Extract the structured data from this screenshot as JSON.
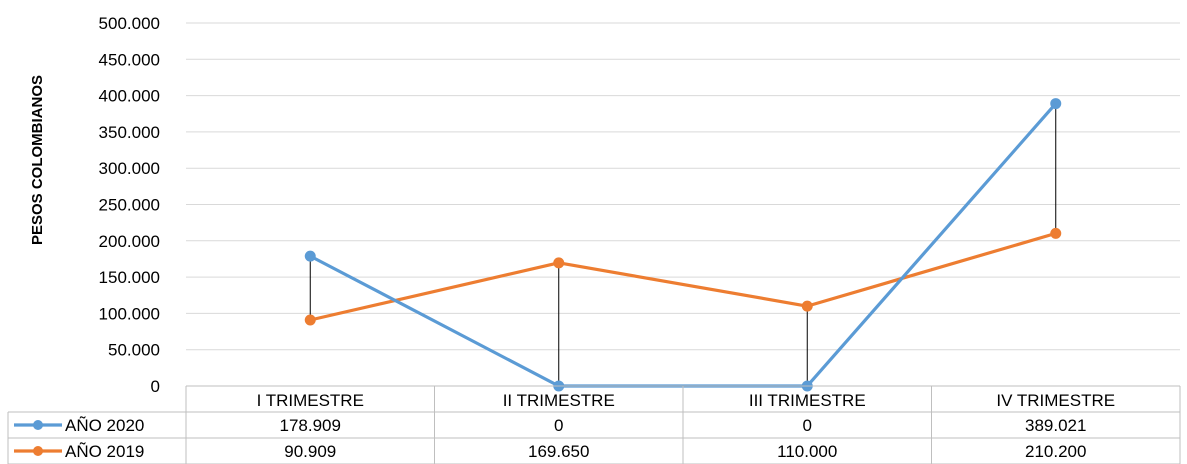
{
  "chart_data": {
    "type": "line",
    "title": "",
    "xlabel": "",
    "ylabel": "PESOS COLOMBIANOS",
    "categories": [
      "I TRIMESTRE",
      "II TRIMESTRE",
      "III TRIMESTRE",
      "IV TRIMESTRE"
    ],
    "ylim": [
      0,
      500000
    ],
    "yticks": [
      0,
      50000,
      100000,
      150000,
      200000,
      250000,
      300000,
      350000,
      400000,
      450000,
      500000
    ],
    "ytick_labels": [
      "0",
      "50.000",
      "100.000",
      "150.000",
      "200.000",
      "250.000",
      "300.000",
      "350.000",
      "400.000",
      "450.000",
      "500.000"
    ],
    "grid": true,
    "legend": "data-table",
    "high_low_lines": true,
    "series": [
      {
        "name": "AÑO 2020",
        "color": "#5B9BD5",
        "values": [
          178909,
          0,
          0,
          389021
        ],
        "value_labels": [
          "178.909",
          "0",
          "0",
          "389.021"
        ]
      },
      {
        "name": "AÑO 2019",
        "color": "#ED7D31",
        "values": [
          90909,
          169650,
          110000,
          210200
        ],
        "value_labels": [
          "90.909",
          "169.650",
          "110.000",
          "210.200"
        ]
      }
    ]
  }
}
